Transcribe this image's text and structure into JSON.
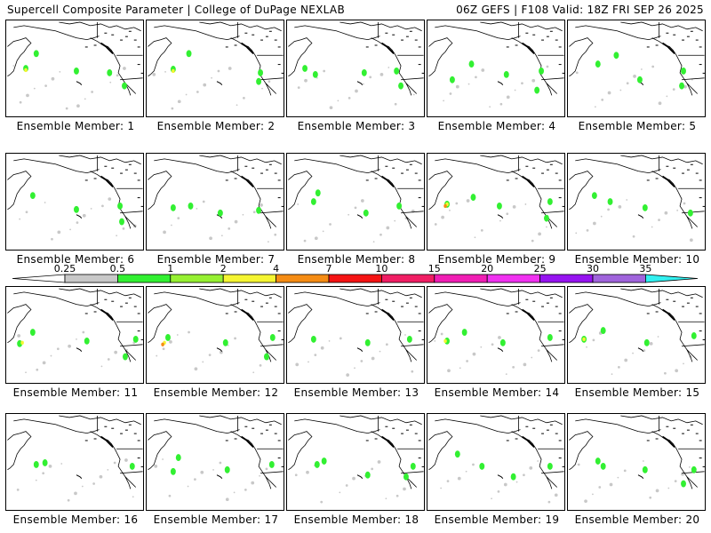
{
  "header": {
    "title_left": "Supercell Composite Parameter | College of DuPage NEXLAB",
    "title_right": "06Z GEFS | F108 Valid: 18Z FRI SEP 26 2025"
  },
  "colorbar": {
    "ticks": [
      "0.25",
      "0.5",
      "1",
      "2",
      "4",
      "7",
      "10",
      "15",
      "20",
      "25",
      "30",
      "35"
    ],
    "colors": [
      "#c8c8c8",
      "#32f032",
      "#96f032",
      "#f5f532",
      "#f58c14",
      "#f51414",
      "#f01e64",
      "#f01eb4",
      "#f032f0",
      "#9614f0",
      "#a064dc"
    ],
    "low_extend_color": "#ffffff",
    "high_extend_color": "#32f0f0"
  },
  "members": [
    {
      "label": "Ensemble Member: 1",
      "blobs": [
        [
          "g",
          34,
          38
        ],
        [
          "g",
          22,
          55
        ],
        [
          "g",
          80,
          58
        ],
        [
          "y",
          22,
          57
        ],
        [
          "g",
          135,
          75
        ],
        [
          "g",
          118,
          60
        ]
      ]
    },
    {
      "label": "Ensemble Member: 2",
      "blobs": [
        [
          "g",
          30,
          56
        ],
        [
          "y",
          30,
          58
        ],
        [
          "g",
          48,
          38
        ],
        [
          "g",
          128,
          70
        ],
        [
          "g",
          130,
          60
        ]
      ]
    },
    {
      "label": "Ensemble Member: 3",
      "blobs": [
        [
          "g",
          20,
          55
        ],
        [
          "g",
          32,
          62
        ],
        [
          "g",
          88,
          60
        ],
        [
          "g",
          130,
          75
        ],
        [
          "g",
          125,
          58
        ]
      ]
    },
    {
      "label": "Ensemble Member: 4",
      "blobs": [
        [
          "g",
          28,
          68
        ],
        [
          "g",
          50,
          50
        ],
        [
          "g",
          90,
          62
        ],
        [
          "g",
          125,
          80
        ],
        [
          "g",
          130,
          58
        ]
      ]
    },
    {
      "label": "Ensemble Member: 5",
      "blobs": [
        [
          "g",
          34,
          50
        ],
        [
          "g",
          55,
          40
        ],
        [
          "g",
          82,
          68
        ],
        [
          "g",
          132,
          58
        ],
        [
          "g",
          130,
          75
        ]
      ]
    },
    {
      "label": "Ensemble Member: 6",
      "blobs": [
        [
          "g",
          30,
          48
        ],
        [
          "g",
          80,
          64
        ],
        [
          "g",
          132,
          78
        ],
        [
          "g",
          130,
          60
        ]
      ]
    },
    {
      "label": "Ensemble Member: 7",
      "blobs": [
        [
          "g",
          30,
          62
        ],
        [
          "g",
          50,
          60
        ],
        [
          "g",
          84,
          68
        ],
        [
          "g",
          128,
          65
        ]
      ]
    },
    {
      "label": "Ensemble Member: 8",
      "blobs": [
        [
          "g",
          30,
          55
        ],
        [
          "g",
          35,
          45
        ],
        [
          "g",
          90,
          68
        ],
        [
          "g",
          128,
          60
        ]
      ]
    },
    {
      "label": "Ensemble Member: 9",
      "blobs": [
        [
          "g",
          22,
          58
        ],
        [
          "y",
          22,
          58
        ],
        [
          "o",
          20,
          60
        ],
        [
          "g",
          52,
          50
        ],
        [
          "g",
          82,
          60
        ],
        [
          "g",
          140,
          55
        ],
        [
          "g",
          136,
          74
        ]
      ]
    },
    {
      "label": "Ensemble Member: 10",
      "blobs": [
        [
          "g",
          30,
          48
        ],
        [
          "g",
          48,
          55
        ],
        [
          "g",
          88,
          62
        ],
        [
          "g",
          140,
          68
        ]
      ]
    },
    {
      "label": "Ensemble Member: 11",
      "blobs": [
        [
          "g",
          15,
          65
        ],
        [
          "y",
          18,
          64
        ],
        [
          "g",
          30,
          52
        ],
        [
          "g",
          92,
          62
        ],
        [
          "g",
          136,
          80
        ],
        [
          "g",
          148,
          60
        ]
      ]
    },
    {
      "label": "Ensemble Member: 12",
      "blobs": [
        [
          "g",
          24,
          58
        ],
        [
          "y",
          20,
          64
        ],
        [
          "o",
          18,
          66
        ],
        [
          "g",
          90,
          64
        ],
        [
          "g",
          137,
          80
        ],
        [
          "g",
          144,
          58
        ]
      ]
    },
    {
      "label": "Ensemble Member: 13",
      "blobs": [
        [
          "g",
          30,
          60
        ],
        [
          "g",
          92,
          64
        ],
        [
          "g",
          140,
          60
        ]
      ]
    },
    {
      "label": "Ensemble Member: 14",
      "blobs": [
        [
          "g",
          22,
          62
        ],
        [
          "y",
          20,
          62
        ],
        [
          "g",
          42,
          52
        ],
        [
          "g",
          86,
          64
        ],
        [
          "g",
          140,
          58
        ]
      ]
    },
    {
      "label": "Ensemble Member: 15",
      "blobs": [
        [
          "g",
          18,
          60
        ],
        [
          "y",
          18,
          60
        ],
        [
          "g",
          40,
          50
        ],
        [
          "g",
          90,
          64
        ],
        [
          "g",
          144,
          56
        ]
      ]
    },
    {
      "label": "Ensemble Member: 16",
      "blobs": [
        [
          "g",
          34,
          58
        ],
        [
          "g",
          44,
          56
        ],
        [
          "g",
          144,
          60
        ]
      ]
    },
    {
      "label": "Ensemble Member: 17",
      "blobs": [
        [
          "g",
          30,
          66
        ],
        [
          "g",
          36,
          50
        ],
        [
          "g",
          92,
          64
        ],
        [
          "g",
          143,
          58
        ]
      ]
    },
    {
      "label": "Ensemble Member: 18",
      "blobs": [
        [
          "g",
          34,
          58
        ],
        [
          "g",
          42,
          54
        ],
        [
          "g",
          92,
          70
        ],
        [
          "g",
          136,
          72
        ],
        [
          "g",
          144,
          60
        ]
      ]
    },
    {
      "label": "Ensemble Member: 19",
      "blobs": [
        [
          "g",
          34,
          46
        ],
        [
          "g",
          62,
          60
        ],
        [
          "g",
          98,
          72
        ],
        [
          "g",
          140,
          60
        ]
      ]
    },
    {
      "label": "Ensemble Member: 20",
      "blobs": [
        [
          "g",
          34,
          54
        ],
        [
          "g",
          40,
          60
        ],
        [
          "g",
          88,
          64
        ],
        [
          "g",
          132,
          80
        ],
        [
          "g",
          144,
          64
        ]
      ]
    }
  ]
}
